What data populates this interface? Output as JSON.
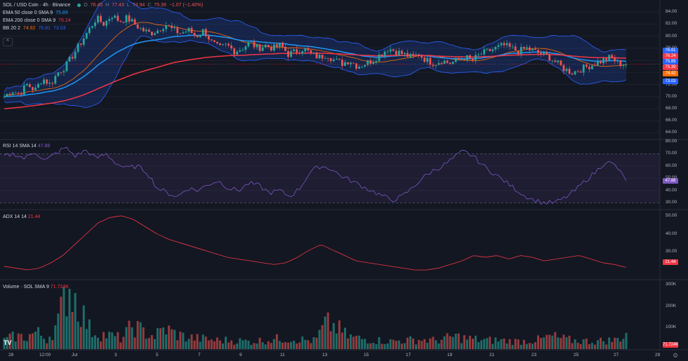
{
  "header": {
    "symbol": "SOL / USD Coin · 4h · Binance",
    "o_label": "O",
    "o": "76.45",
    "h_label": "H",
    "h": "77.43",
    "l_label": "L",
    "l": "74.94",
    "c_label": "C",
    "c": "75.39",
    "change": "−1.07 (−1.40%)"
  },
  "indicators": {
    "ema50": {
      "label": "EMA 50 close 0 SMA 9",
      "value": "75.89"
    },
    "ema200": {
      "label": "EMA 200 close 0 SMA 9",
      "value": "76.24"
    },
    "bb": {
      "label": "BB 20 2",
      "v1": "74.92",
      "v2": "76.81",
      "v3": "73.03"
    },
    "collapse_button": "^",
    "rsi": {
      "label": "RSI 14 SMA 14",
      "value": "47.88"
    },
    "adx": {
      "label": "ADX 14 14",
      "value": "21.44"
    },
    "volume": {
      "label": "Volume · SOL SMA 9",
      "value": "71.724K"
    }
  },
  "price_axis": [
    "84.00",
    "82.00",
    "80.00",
    "78.00",
    "76.00",
    "74.00",
    "72.00",
    "70.00",
    "68.00",
    "66.00",
    "64.00"
  ],
  "price_tags": [
    {
      "text": "76.81",
      "color": "#2962ff"
    },
    {
      "text": "76.24",
      "color": "#f23645"
    },
    {
      "text": "75.89",
      "color": "#2962ff"
    },
    {
      "text": "75.39",
      "color": "#f23645"
    },
    {
      "text": "74.92",
      "color": "#ff6d00"
    },
    {
      "text": "73.03",
      "color": "#2962ff"
    }
  ],
  "rsi_axis": [
    "80.00",
    "70.00",
    "60.00",
    "50.00",
    "40.00",
    "30.00"
  ],
  "rsi_tag": {
    "text": "47.88",
    "color": "#7e57c2"
  },
  "adx_axis": [
    "50.00",
    "40.00",
    "30.00"
  ],
  "adx_tag": {
    "text": "21.44",
    "color": "#f23645"
  },
  "vol_axis": [
    "300K",
    "200K",
    "100K"
  ],
  "vol_tag": {
    "text": "71.724K",
    "color": "#f23645"
  },
  "time_axis": [
    "28",
    "12:00",
    "Jul",
    "3",
    "5",
    "7",
    "9",
    "11",
    "13",
    "15",
    "17",
    "19",
    "21",
    "23",
    "25",
    "27",
    "29"
  ],
  "logo_text": "TV",
  "gear_icon": "⚙",
  "colors": {
    "up": "#26a69a",
    "down": "#ef5350",
    "ema50": "#2196f3",
    "ema200": "#f23645",
    "bbBasis": "#ff6d00",
    "bbBand": "#2962ff",
    "rsi": "#7e57c2",
    "adx": "#f23645"
  },
  "chart_data": {
    "type": "candlestick",
    "price_range": [
      63,
      86
    ],
    "rsi_range": [
      25,
      81
    ],
    "adx_range": [
      15,
      53
    ],
    "volume_range": [
      0,
      320000
    ],
    "close_anchors": [
      70,
      71,
      70.5,
      72,
      71,
      73,
      72,
      74,
      75,
      77,
      79,
      81,
      83,
      82,
      83.5,
      82.5,
      83,
      82,
      81,
      80.5,
      81,
      82,
      81,
      80.5,
      81,
      80,
      81,
      79,
      78,
      78.5,
      77.5,
      78,
      79,
      78,
      78.5,
      78,
      78.5,
      77,
      77.5,
      78,
      77,
      76.5,
      77,
      76,
      75.5,
      76,
      75,
      75.5,
      76,
      77,
      78,
      77.5,
      77,
      76.5,
      77,
      76,
      75.5,
      76,
      75.5,
      76,
      76.5,
      76,
      77,
      77.5,
      78,
      78.5,
      78,
      77.5,
      78,
      77.5,
      77,
      76.5,
      75.5,
      74.5,
      74,
      74.5,
      75,
      75.5,
      76,
      76.5,
      75.5,
      75.4
    ],
    "rsi_anchors": [
      68,
      70,
      66,
      72,
      64,
      70,
      75,
      68,
      73,
      66,
      70,
      62,
      58,
      60,
      55,
      42,
      38,
      35,
      42,
      40,
      45,
      48,
      42,
      40,
      46,
      44,
      38,
      40,
      35,
      42,
      55,
      60,
      58,
      52,
      48,
      44,
      40,
      36,
      32,
      35,
      42,
      50,
      56,
      60,
      66,
      72,
      68,
      60,
      54,
      48,
      42,
      36,
      32,
      30,
      30,
      34,
      40,
      48,
      55,
      64,
      60,
      47.88
    ],
    "adx_anchors": [
      22,
      21,
      20,
      21,
      24,
      28,
      34,
      40,
      46,
      49,
      50,
      48,
      44,
      40,
      37,
      35,
      33,
      31,
      29,
      27,
      26,
      25,
      24,
      23,
      24,
      27,
      31,
      34,
      31,
      28,
      25,
      24,
      23,
      22,
      21,
      20,
      20,
      21,
      23,
      25,
      28,
      27,
      28,
      26,
      28,
      27,
      25,
      26,
      27,
      28,
      26,
      24,
      23,
      21.44
    ],
    "volume_anchors": [
      40,
      60,
      55,
      80,
      45,
      120,
      300,
      200,
      90,
      70,
      60,
      50,
      110,
      80,
      60,
      95,
      70,
      55,
      50,
      45,
      40,
      42,
      38,
      35,
      40,
      45,
      50,
      48,
      42,
      38,
      120,
      100,
      60,
      50,
      45,
      40,
      36,
      40,
      42,
      44,
      40,
      46,
      60,
      50,
      45,
      40,
      42,
      38,
      36,
      40,
      44,
      60,
      48,
      40,
      38,
      36,
      40,
      42,
      70
    ]
  }
}
